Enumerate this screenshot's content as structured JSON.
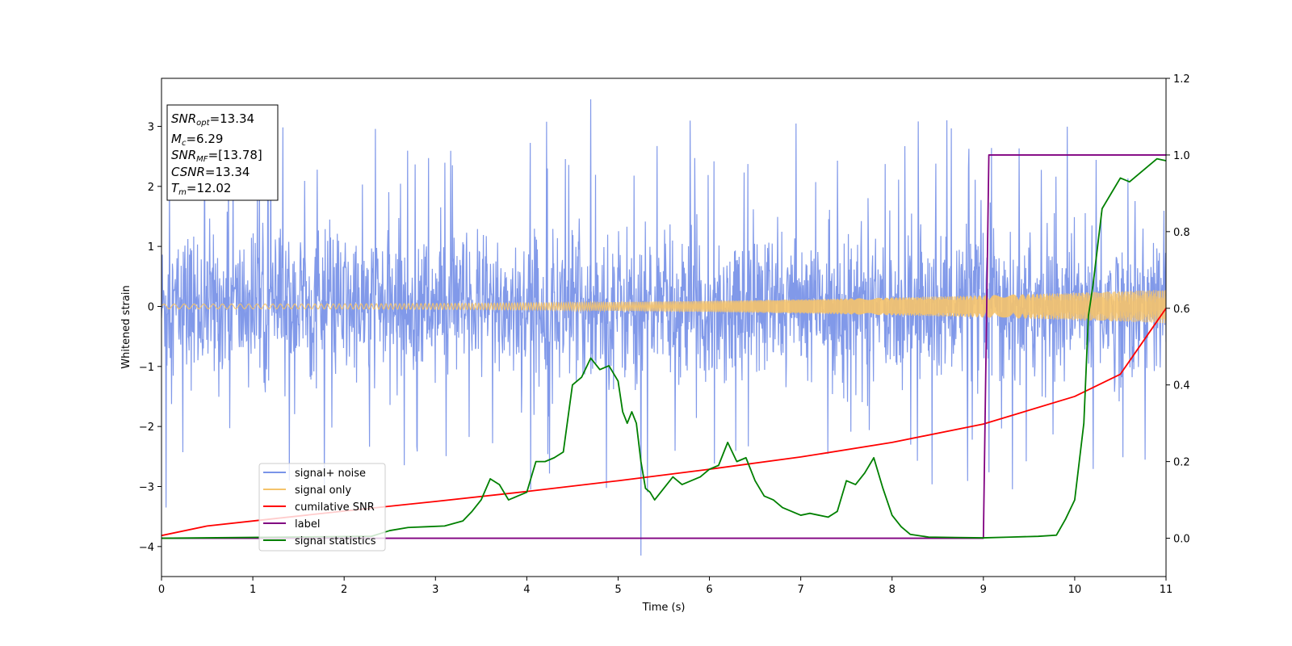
{
  "chart_data": {
    "type": "line",
    "xlabel": "Time (s)",
    "ylabel": "Whitened strain",
    "xlim": [
      0,
      11
    ],
    "ylim": [
      -4.5,
      3.8
    ],
    "y2lim": [
      -0.1,
      1.2
    ],
    "xticks": [
      "0",
      "1",
      "2",
      "3",
      "4",
      "5",
      "6",
      "7",
      "8",
      "9",
      "10",
      "11"
    ],
    "yticks": [
      "3",
      "2",
      "1",
      "0",
      "−1",
      "−2",
      "−3",
      "−4"
    ],
    "y2ticks": [
      "1.2",
      "1.0",
      "0.8",
      "0.6",
      "0.4",
      "0.2",
      "0.0"
    ],
    "grid": false,
    "legend_position": "lower-left",
    "info_box": {
      "snr_opt": {
        "name": "SNR",
        "sub": "opt",
        "value": "=13.34"
      },
      "mc": {
        "name": "M",
        "sub": "c",
        "value": "=6.29"
      },
      "snr_mf": {
        "name": "SNR",
        "sub": "MF",
        "value": "=[13.78]"
      },
      "csnr": {
        "name": "CSNR",
        "value": "=13.34"
      },
      "tm": {
        "name": "T",
        "sub": "m",
        "value": "=12.02"
      }
    },
    "series": [
      {
        "name": "signal+ noise",
        "color": "#7a94e8",
        "axis": "left",
        "description_type": "noise band",
        "typical_range": [
          -1.9,
          1.9
        ],
        "max_peak": 3.45,
        "min_trough": -4.15
      },
      {
        "name": "signal only",
        "color": "#f5c36b",
        "axis": "left",
        "amplitude_start": 0.04,
        "amplitude_end": 0.28
      },
      {
        "name": "cumilative SNR",
        "color": "#ff0000",
        "axis": "right",
        "x": [
          0,
          0.5,
          1,
          2,
          3,
          4,
          5,
          6,
          7,
          8,
          9,
          10,
          10.5,
          11
        ],
        "y": [
          0.007,
          0.032,
          0.045,
          0.071,
          0.096,
          0.122,
          0.15,
          0.18,
          0.212,
          0.25,
          0.298,
          0.37,
          0.428,
          0.6
        ]
      },
      {
        "name": "label",
        "color": "#800080",
        "axis": "right",
        "x": [
          0,
          9.0,
          9.06,
          11
        ],
        "y": [
          0,
          0,
          1,
          1
        ]
      },
      {
        "name": "signal statistics",
        "color": "#008000",
        "axis": "right",
        "x": [
          0,
          2.3,
          2.5,
          2.7,
          2.9,
          3.1,
          3.3,
          3.4,
          3.5,
          3.6,
          3.7,
          3.8,
          3.9,
          4.0,
          4.1,
          4.2,
          4.3,
          4.4,
          4.5,
          4.6,
          4.7,
          4.8,
          4.9,
          5.0,
          5.05,
          5.1,
          5.15,
          5.2,
          5.25,
          5.3,
          5.35,
          5.4,
          5.5,
          5.6,
          5.7,
          5.8,
          5.9,
          6.0,
          6.1,
          6.2,
          6.3,
          6.4,
          6.5,
          6.6,
          6.7,
          6.8,
          6.9,
          7.0,
          7.1,
          7.2,
          7.3,
          7.4,
          7.5,
          7.6,
          7.7,
          7.8,
          7.9,
          8.0,
          8.1,
          8.2,
          8.4,
          8.7,
          9.0,
          9.3,
          9.6,
          9.8,
          9.9,
          10.0,
          10.05,
          10.1,
          10.15,
          10.2,
          10.3,
          10.4,
          10.5,
          10.6,
          10.7,
          10.8,
          10.9,
          11
        ],
        "y": [
          0,
          0.005,
          0.02,
          0.028,
          0.03,
          0.032,
          0.045,
          0.07,
          0.1,
          0.155,
          0.14,
          0.1,
          0.11,
          0.12,
          0.2,
          0.2,
          0.21,
          0.225,
          0.4,
          0.42,
          0.47,
          0.44,
          0.45,
          0.41,
          0.33,
          0.3,
          0.33,
          0.3,
          0.2,
          0.13,
          0.12,
          0.1,
          0.13,
          0.16,
          0.14,
          0.15,
          0.16,
          0.18,
          0.19,
          0.25,
          0.2,
          0.21,
          0.15,
          0.11,
          0.1,
          0.08,
          0.07,
          0.06,
          0.065,
          0.06,
          0.055,
          0.07,
          0.15,
          0.14,
          0.17,
          0.21,
          0.13,
          0.06,
          0.03,
          0.01,
          0.003,
          0.002,
          0.001,
          0.003,
          0.005,
          0.008,
          0.05,
          0.1,
          0.2,
          0.3,
          0.58,
          0.66,
          0.86,
          0.9,
          0.94,
          0.93,
          0.95,
          0.97,
          0.99,
          0.985
        ]
      }
    ]
  }
}
